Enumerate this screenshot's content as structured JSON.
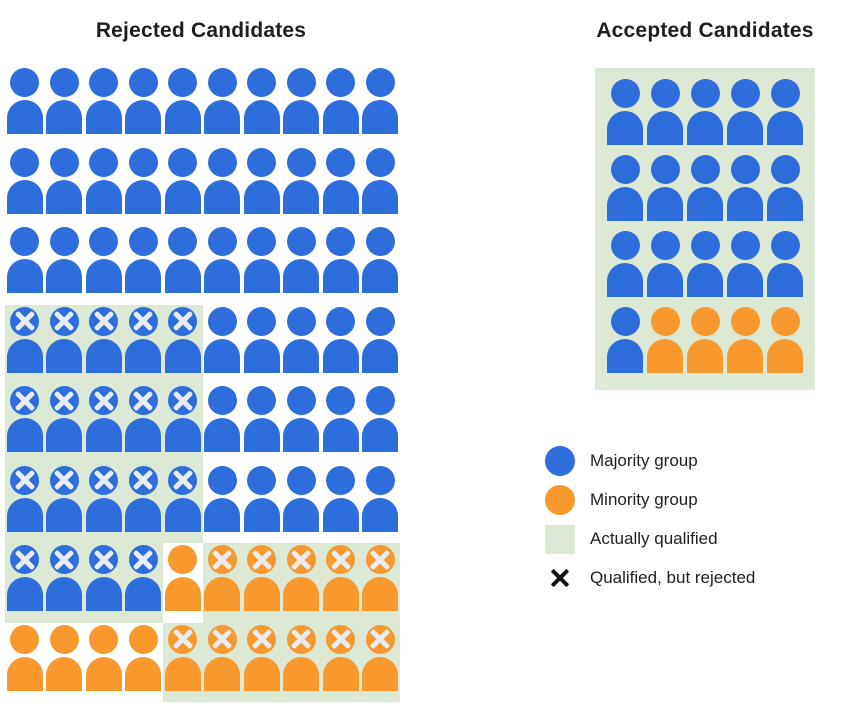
{
  "rejected": {
    "title": "Rejected Candidates",
    "grid": [
      [
        "b",
        "b",
        "b",
        "b",
        "b",
        "b",
        "b",
        "b",
        "b",
        "b"
      ],
      [
        "b",
        "b",
        "b",
        "b",
        "b",
        "b",
        "b",
        "b",
        "b",
        "b"
      ],
      [
        "b",
        "b",
        "b",
        "b",
        "b",
        "b",
        "b",
        "b",
        "b",
        "b"
      ],
      [
        "bxg",
        "bxg",
        "bxg",
        "bxg",
        "bxg",
        "b",
        "b",
        "b",
        "b",
        "b"
      ],
      [
        "bxg",
        "bxg",
        "bxg",
        "bxg",
        "bxg",
        "b",
        "b",
        "b",
        "b",
        "b"
      ],
      [
        "bxg",
        "bxg",
        "bxg",
        "bxg",
        "bxg",
        "b",
        "b",
        "b",
        "b",
        "b"
      ],
      [
        "bxg",
        "bxg",
        "bxg",
        "bxg",
        "o",
        "oxg",
        "oxg",
        "oxg",
        "oxg",
        "oxg"
      ],
      [
        "o",
        "o",
        "o",
        "o",
        "oxg",
        "oxg",
        "oxg",
        "oxg",
        "oxg",
        "oxg"
      ]
    ]
  },
  "accepted": {
    "title": "Accepted Candidates",
    "grid": [
      [
        "b",
        "b",
        "b",
        "b",
        "b"
      ],
      [
        "b",
        "b",
        "b",
        "b",
        "b"
      ],
      [
        "b",
        "b",
        "b",
        "b",
        "b"
      ],
      [
        "b",
        "o",
        "o",
        "o",
        "o"
      ]
    ]
  },
  "cell_codes": {
    "b": "majority-group person (blue)",
    "o": "minority-group person (orange)",
    "bxg": "majority person, actually qualified (green) but rejected (x)",
    "oxg": "minority person, actually qualified (green) but rejected (x)"
  },
  "legend": {
    "items": [
      {
        "swatch": "circle-blue",
        "label": "Majority group"
      },
      {
        "swatch": "circle-orange",
        "label": "Minority group"
      },
      {
        "swatch": "square-green",
        "label": "Actually qualified"
      },
      {
        "swatch": "x-mark",
        "label": "Qualified, but rejected"
      }
    ]
  },
  "colors": {
    "majority_blue": "#2d6edc",
    "minority_orange": "#f8982d",
    "qualified_green": "#dce9d5",
    "icon_x_mark": "#e9edf2",
    "legend_x_mark": "#141414",
    "text": "#1f1f1f"
  }
}
